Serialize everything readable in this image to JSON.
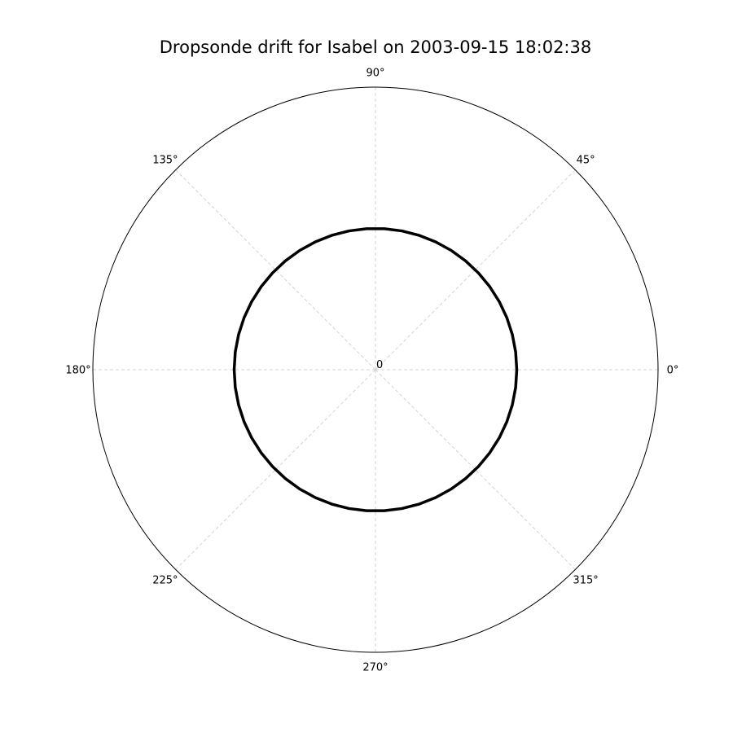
{
  "chart_data": {
    "type": "polar",
    "title": "Dropsonde drift for Isabel on 2003-09-15 18:02:38",
    "angular_ticks": [
      {
        "angle": 0,
        "label": "0°"
      },
      {
        "angle": 45,
        "label": "45°"
      },
      {
        "angle": 90,
        "label": "90°"
      },
      {
        "angle": 135,
        "label": "135°"
      },
      {
        "angle": 180,
        "label": "180°"
      },
      {
        "angle": 225,
        "label": "225°"
      },
      {
        "angle": 270,
        "label": "270°"
      },
      {
        "angle": 315,
        "label": "315°"
      }
    ],
    "radial_label": "0",
    "rlim": [
      -0.05,
      0.05
    ],
    "grid": true,
    "series": [
      {
        "type": "line",
        "r_constant": 0,
        "theta_deg": [
          0,
          360
        ],
        "color": "#000000"
      }
    ]
  }
}
